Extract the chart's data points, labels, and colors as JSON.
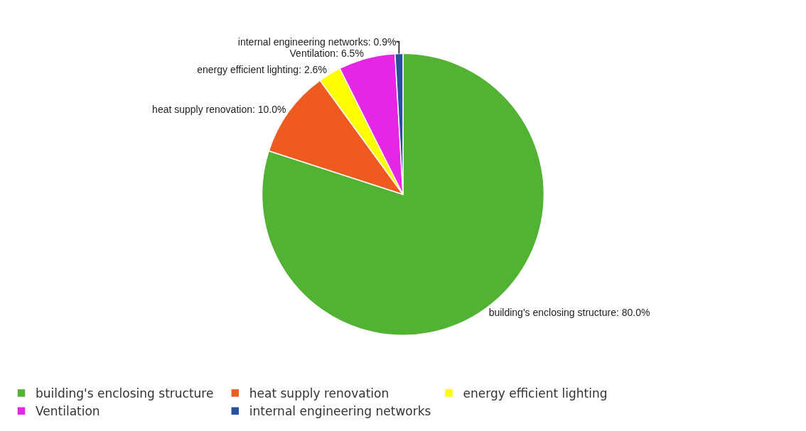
{
  "chart_data": {
    "type": "pie",
    "categories": [
      "building's enclosing structure",
      "heat supply renovation",
      "energy efficient lighting",
      "Ventilation",
      "internal engineering networks"
    ],
    "values": [
      80.0,
      10.0,
      2.6,
      6.5,
      0.9
    ],
    "colors": [
      "#52b234",
      "#ee5a1f",
      "#ffff00",
      "#e526e5",
      "#2a4f9e"
    ],
    "value_labels": [
      "building's enclosing structure: 80.0%",
      "heat supply renovation: 10.0%",
      "energy efficient lighting: 2.6%",
      "Ventilation: 6.5%",
      "internal engineering networks: 0.9%"
    ],
    "legend": "bottom"
  }
}
